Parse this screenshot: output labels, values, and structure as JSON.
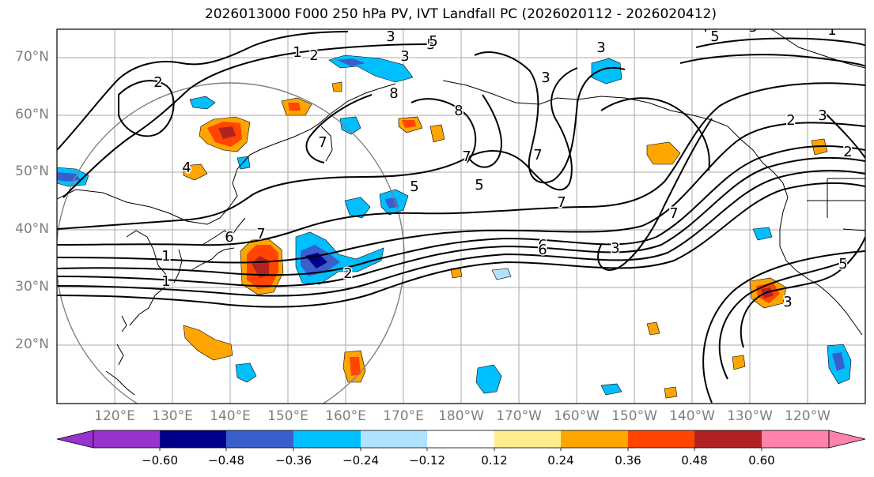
{
  "title": "2026013000 F000 250 hPa PV, IVT Landfall PC (2026020112 - 2026020412)",
  "lat_labels": [
    "70°N",
    "60°N",
    "50°N",
    "40°N",
    "30°N",
    "20°N"
  ],
  "lon_labels": [
    "120°E",
    "130°E",
    "140°E",
    "150°E",
    "160°E",
    "170°E",
    "180°W",
    "170°W",
    "160°W",
    "150°W",
    "140°W",
    "130°W",
    "120°W"
  ],
  "colorbar": {
    "ticks": [
      "−0.60",
      "−0.48",
      "−0.36",
      "−0.24",
      "−0.12",
      "0.12",
      "0.24",
      "0.36",
      "0.48",
      "0.60"
    ],
    "colors": [
      "#9a32cd",
      "#00008b",
      "#3a5fcd",
      "#00bfff",
      "#b0e2ff",
      "#ffffff",
      "#ffec8b",
      "#ffa500",
      "#ff4500",
      "#b22222",
      "#ff82ab"
    ]
  },
  "contour_labels": [
    "1",
    "2",
    "3",
    "5",
    "3",
    "3",
    "1",
    "1",
    "5",
    "2",
    "5",
    "2",
    "8",
    "3",
    "6",
    "7",
    "8",
    "7",
    "7",
    "7",
    "7",
    "3",
    "3",
    "2",
    "4",
    "6",
    "1",
    "2",
    "7",
    "5",
    "5",
    "6",
    "4",
    "3",
    "3",
    "5"
  ]
}
